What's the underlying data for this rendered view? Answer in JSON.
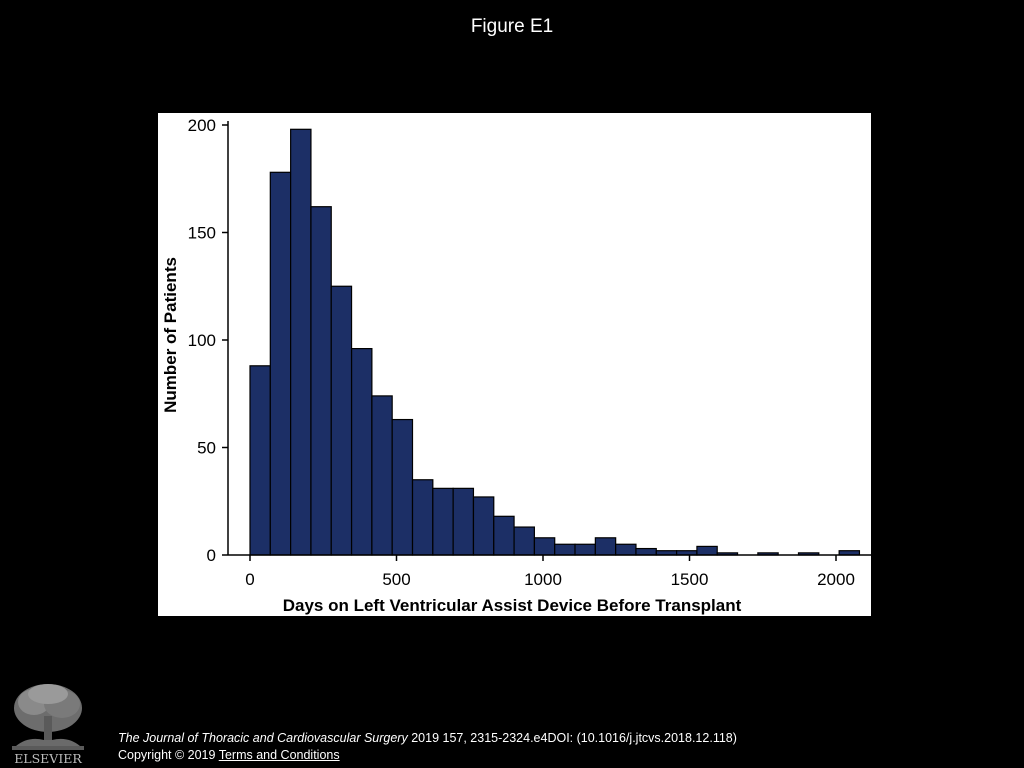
{
  "header": {
    "title": "Figure E1"
  },
  "colors": {
    "background": "#000000",
    "bar_fill": "#1c2f66",
    "bar_stroke": "#000000",
    "panel": "#ffffff"
  },
  "chart_data": {
    "type": "bar",
    "title": "",
    "xlabel": "Days on Left Ventricular Assist Device Before Transplant",
    "ylabel": "Number of Patients",
    "xlim": [
      0,
      2080
    ],
    "ylim": [
      0,
      200
    ],
    "bin_width": 69.3,
    "xticks": [
      0,
      500,
      1000,
      1500,
      2000
    ],
    "yticks": [
      0,
      50,
      100,
      150,
      200
    ],
    "grid": false,
    "bins": [
      {
        "x": 0.0,
        "count": 88
      },
      {
        "x": 69.3,
        "count": 178
      },
      {
        "x": 138.7,
        "count": 198
      },
      {
        "x": 208.0,
        "count": 162
      },
      {
        "x": 277.3,
        "count": 125
      },
      {
        "x": 346.7,
        "count": 96
      },
      {
        "x": 416.0,
        "count": 74
      },
      {
        "x": 485.3,
        "count": 63
      },
      {
        "x": 554.7,
        "count": 35
      },
      {
        "x": 624.0,
        "count": 31
      },
      {
        "x": 693.3,
        "count": 31
      },
      {
        "x": 762.7,
        "count": 27
      },
      {
        "x": 832.0,
        "count": 18
      },
      {
        "x": 901.3,
        "count": 13
      },
      {
        "x": 970.7,
        "count": 8
      },
      {
        "x": 1040.0,
        "count": 5
      },
      {
        "x": 1109.3,
        "count": 5
      },
      {
        "x": 1178.7,
        "count": 8
      },
      {
        "x": 1248.0,
        "count": 5
      },
      {
        "x": 1317.3,
        "count": 3
      },
      {
        "x": 1386.7,
        "count": 2
      },
      {
        "x": 1456.0,
        "count": 2
      },
      {
        "x": 1525.3,
        "count": 4
      },
      {
        "x": 1594.7,
        "count": 1
      },
      {
        "x": 1664.0,
        "count": 0
      },
      {
        "x": 1733.3,
        "count": 1
      },
      {
        "x": 1802.7,
        "count": 0
      },
      {
        "x": 1872.0,
        "count": 1
      },
      {
        "x": 1941.3,
        "count": 0
      },
      {
        "x": 2010.7,
        "count": 2
      }
    ]
  },
  "footer": {
    "journal": "The Journal of Thoracic and Cardiovascular Surgery",
    "citation": " 2019 157, 2315-2324.e4DOI: (10.1016/j.jtcvs.2018.12.118)",
    "copyright": "Copyright © 2019 ",
    "terms_link": " Terms and Conditions"
  },
  "logo": {
    "text": "ELSEVIER",
    "icon": "elsevier-tree-icon"
  }
}
